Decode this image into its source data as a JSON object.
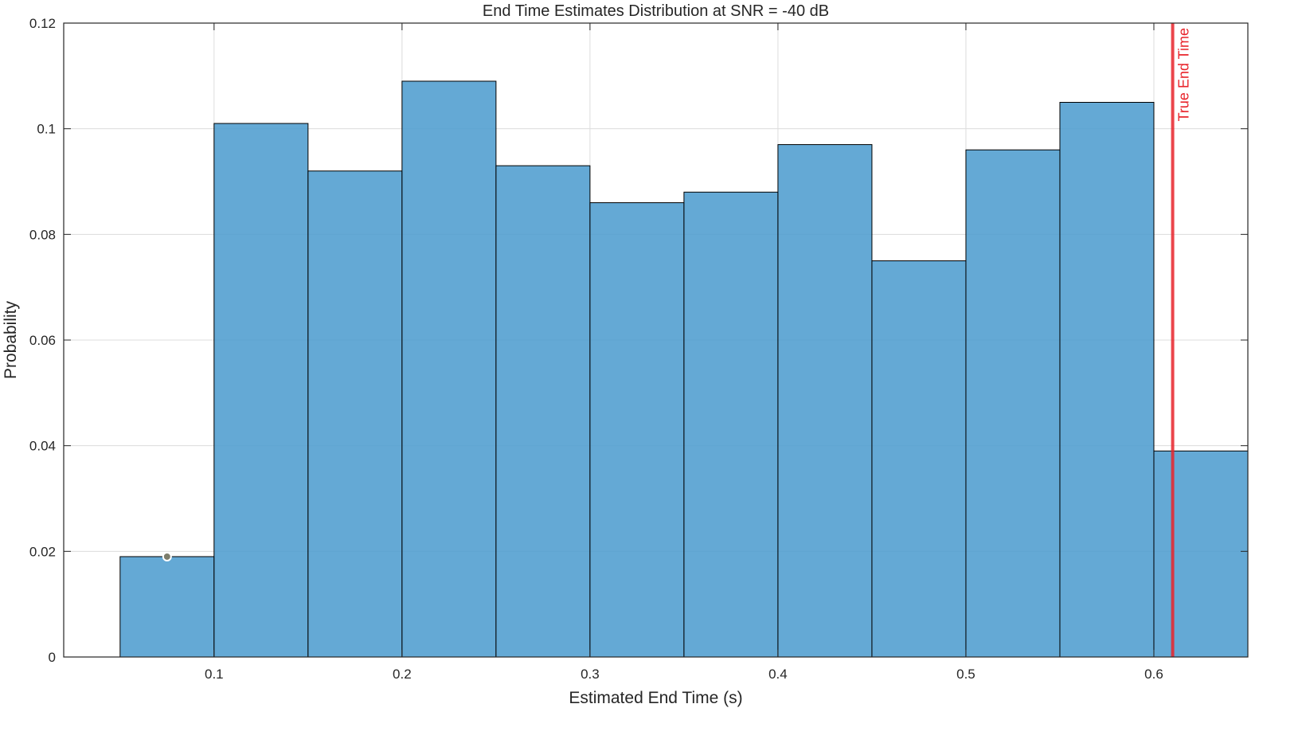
{
  "chart_data": {
    "type": "bar",
    "title": "End Time Estimates Distribution at SNR = -40 dB",
    "xlabel": "Estimated End Time (s)",
    "ylabel": "Probability",
    "xlim": [
      0.02,
      0.65
    ],
    "ylim": [
      0,
      0.12
    ],
    "grid": true,
    "bin_edges": [
      0.05,
      0.1,
      0.15,
      0.2,
      0.25,
      0.3,
      0.35,
      0.4,
      0.45,
      0.5,
      0.55,
      0.6,
      0.65
    ],
    "values": [
      0.019,
      0.101,
      0.092,
      0.109,
      0.093,
      0.086,
      0.088,
      0.097,
      0.075,
      0.096,
      0.105,
      0.039
    ],
    "x_ticks": [
      0.1,
      0.2,
      0.3,
      0.4,
      0.5,
      0.6
    ],
    "x_tick_labels": [
      "0.1",
      "0.2",
      "0.3",
      "0.4",
      "0.5",
      "0.6"
    ],
    "y_ticks": [
      0,
      0.02,
      0.04,
      0.06,
      0.08,
      0.1,
      0.12
    ],
    "y_tick_labels": [
      "0",
      "0.02",
      "0.04",
      "0.06",
      "0.08",
      "0.1",
      "0.12"
    ],
    "reference_line": {
      "x": 0.61,
      "label": "True End Time",
      "color": "#e8242b"
    },
    "marker_point": {
      "x": 0.075,
      "y": 0.019
    },
    "bar_color": "#4d9ccf"
  }
}
